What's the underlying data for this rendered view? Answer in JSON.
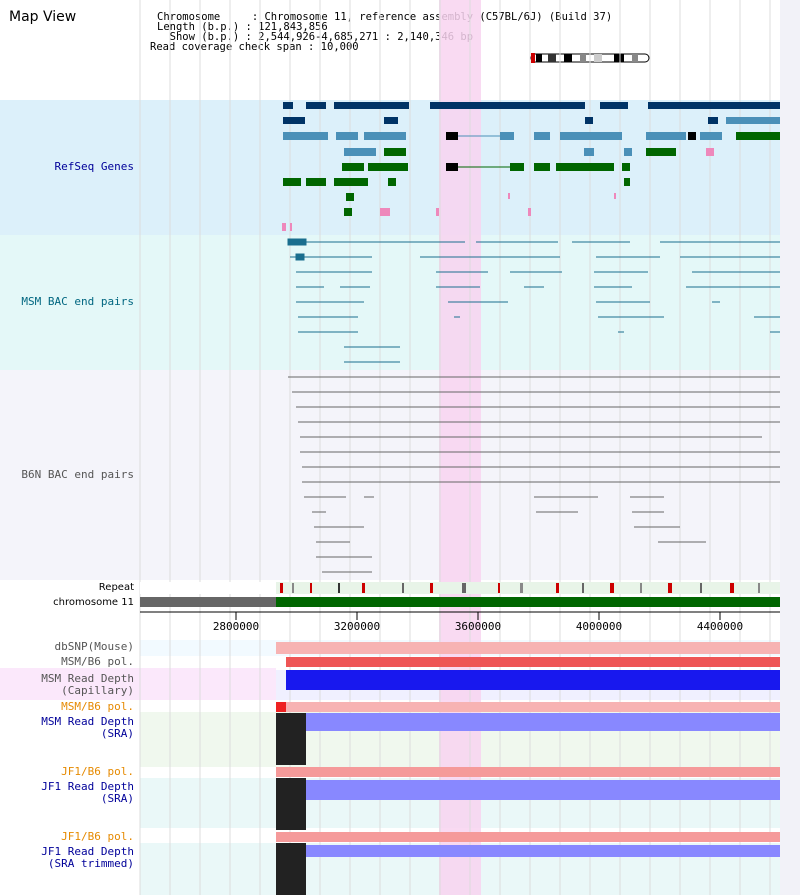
{
  "header": {
    "title": "Map View",
    "info_lines": [
      "Chromosome     : Chromosome 11, reference assembly (C57BL/6J) (Build 37)",
      "Length (b.p.) : 121,843,856",
      "  Show (b.p.) : 2,544,926-4,685,271 : 2,140,346 bp",
      "Read coverage check span : 10,000"
    ]
  },
  "tracks": {
    "refseq": "RefSeq Genes",
    "msm_bac": "MSM BAC end pairs",
    "b6n_bac": "B6N BAC end pairs",
    "repeat": "Repeat",
    "chromosome": "chromosome 11",
    "dbsnp": "dbSNP(Mouse)",
    "msm_b6_pol": "MSM/B6 pol.",
    "msm_depth_cap": "MSM Read Depth\n(Capillary)",
    "msm_b6_pol_2": "MSM/B6 pol.",
    "msm_depth_sra": "MSM Read Depth\n(SRA)",
    "jf1_b6_pol": "JF1/B6 pol.",
    "jf1_depth_sra": "JF1 Read Depth\n(SRA)",
    "jf1_b6_pol_2": "JF1/B6 pol.",
    "jf1_depth_trim": "JF1 Read Depth\n(SRA trimmed)"
  },
  "ruler": {
    "ticks": [
      "2800000",
      "3200000",
      "3600000",
      "4000000",
      "4400000"
    ]
  },
  "colors": {
    "label_blue": "#000099",
    "label_teal": "#006680",
    "label_gray": "#555555",
    "label_orange": "#e68a00",
    "highlight": "#f8d4f0",
    "gene_dark": "#003366",
    "gene_mid": "#4a90b8",
    "gene_green": "#006600",
    "bac_teal": "#1a6e8e",
    "bac_gray": "#666666",
    "depth_blue": "#0000ff",
    "depth_light": "#8080ff"
  }
}
